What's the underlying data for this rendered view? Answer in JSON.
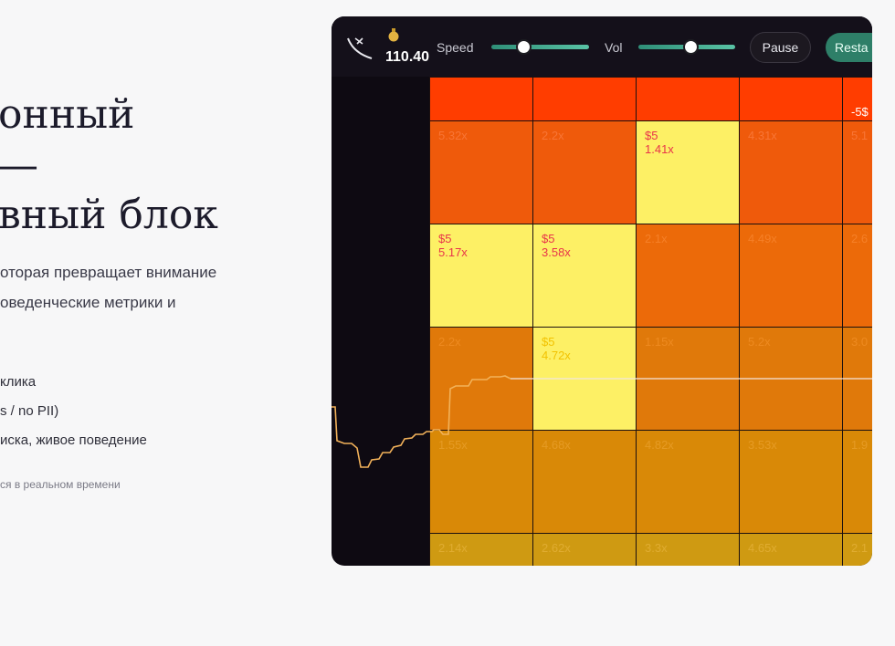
{
  "hero": {
    "title_lines": [
      "онный",
      "—",
      "вный блок"
    ],
    "description_lines": [
      "оторая превращает внимание",
      "оведенческие метрики и"
    ],
    "bullets": [
      "клика",
      "s / no PII)",
      "иска, живое поведение"
    ],
    "note": "ся в реальном времени"
  },
  "game": {
    "balance": "110.40",
    "speed_label": "Speed",
    "vol_label": "Vol",
    "pause_button": "Pause",
    "restart_button": "Resta",
    "grid": {
      "rows": [
        [
          [],
          [],
          [],
          [],
          [
            "-5$"
          ]
        ],
        [
          [
            "5.32x"
          ],
          [
            "2.2x"
          ],
          [
            "$5",
            "1.41x"
          ],
          [
            "4.31x"
          ],
          [
            "5.1"
          ]
        ],
        [
          [
            "$5",
            "5.17x"
          ],
          [
            "$5",
            "3.58x"
          ],
          [
            "2.1x"
          ],
          [
            "4.49x"
          ],
          [
            "2.6"
          ]
        ],
        [
          [
            "2.2x"
          ],
          [
            "$5",
            "4.72x"
          ],
          [
            "1.15x"
          ],
          [
            "5.2x"
          ],
          [
            "3.0"
          ]
        ],
        [
          [
            "1.55x"
          ],
          [
            "4.68x"
          ],
          [
            "4.82x"
          ],
          [
            "3.53x"
          ],
          [
            "1.9"
          ]
        ],
        [
          [
            "2.14x"
          ],
          [
            "2.62x"
          ],
          [
            "3.3x"
          ],
          [
            "4.65x"
          ],
          [
            "2.1"
          ]
        ]
      ]
    }
  }
}
